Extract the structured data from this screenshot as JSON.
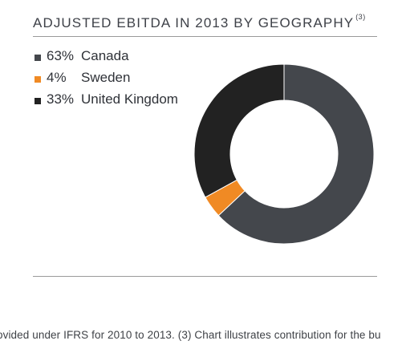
{
  "chart": {
    "title": "ADJUSTED EBITDA IN 2013 BY GEOGRAPHY",
    "title_note": "(3)"
  },
  "legend": [
    {
      "pct": "63%",
      "name": "Canada",
      "color": "#44474c"
    },
    {
      "pct": "4%",
      "name": "Sweden",
      "color": "#f08a24"
    },
    {
      "pct": "33%",
      "name": "United Kingdom",
      "color": "#222222"
    }
  ],
  "footnote": "ovided under IFRS for 2010 to 2013. (3) Chart illustrates contribution for the bu",
  "chart_data": {
    "type": "pie",
    "title": "ADJUSTED EBITDA IN 2013 BY GEOGRAPHY",
    "categories": [
      "Canada",
      "Sweden",
      "United Kingdom"
    ],
    "values": [
      63,
      4,
      33
    ],
    "unit": "%",
    "colors": [
      "#44474c",
      "#f08a24",
      "#222222"
    ],
    "donut": true,
    "legend_position": "top-left"
  }
}
